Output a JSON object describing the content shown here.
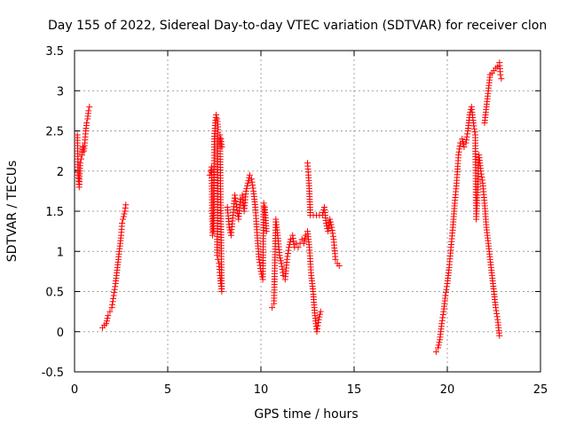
{
  "chart_data": {
    "type": "scatter",
    "title": "Day 155 of 2022, Sidereal Day-to-day VTEC variation (SDTVAR) for receiver clon",
    "xlabel": "GPS time / hours",
    "ylabel": "SDTVAR / TECUs",
    "xlim": [
      0,
      25
    ],
    "ylim": [
      -0.5,
      3.5
    ],
    "xticks": [
      0,
      5,
      10,
      15,
      20,
      25
    ],
    "xtick_labels": [
      "0",
      "5",
      "10",
      "15",
      "20",
      "25"
    ],
    "yticks": [
      -0.5,
      0,
      0.5,
      1,
      1.5,
      2,
      2.5,
      3,
      3.5
    ],
    "ytick_labels": [
      "-0.5",
      "0",
      "0.5",
      "1",
      "1.5",
      "2",
      "2.5",
      "3",
      "3.5"
    ],
    "grid": true,
    "marker": "+",
    "color": "#ff0000",
    "segments": [
      {
        "name": "arc-1",
        "points": [
          [
            0.15,
            2.45
          ],
          [
            0.2,
            1.95
          ],
          [
            0.25,
            1.8
          ],
          [
            0.3,
            2.1
          ],
          [
            0.35,
            2.15
          ],
          [
            0.4,
            2.2
          ],
          [
            0.45,
            2.3
          ],
          [
            0.5,
            2.25
          ],
          [
            0.55,
            2.35
          ],
          [
            0.6,
            2.5
          ],
          [
            0.65,
            2.6
          ],
          [
            0.7,
            2.65
          ],
          [
            0.75,
            2.75
          ],
          [
            0.8,
            2.8
          ]
        ]
      },
      {
        "name": "arc-2",
        "points": [
          [
            1.5,
            0.05
          ],
          [
            1.6,
            0.08
          ],
          [
            1.7,
            0.1
          ],
          [
            1.8,
            0.2
          ],
          [
            1.9,
            0.25
          ],
          [
            2.0,
            0.3
          ],
          [
            2.1,
            0.45
          ],
          [
            2.2,
            0.6
          ],
          [
            2.3,
            0.8
          ],
          [
            2.4,
            1.0
          ],
          [
            2.5,
            1.2
          ],
          [
            2.55,
            1.35
          ],
          [
            2.6,
            1.4
          ],
          [
            2.7,
            1.5
          ],
          [
            2.75,
            1.58
          ]
        ]
      },
      {
        "name": "arc-3",
        "points": [
          [
            7.25,
            1.95
          ],
          [
            7.3,
            2.0
          ],
          [
            7.35,
            2.05
          ],
          [
            7.4,
            1.2
          ],
          [
            7.45,
            1.25
          ],
          [
            7.5,
            2.4
          ],
          [
            7.55,
            2.6
          ],
          [
            7.6,
            2.7
          ],
          [
            7.65,
            2.65
          ],
          [
            7.7,
            2.55
          ],
          [
            7.65,
            0.95
          ],
          [
            7.7,
            0.9
          ],
          [
            7.75,
            0.85
          ],
          [
            7.8,
            0.7
          ],
          [
            7.85,
            0.6
          ],
          [
            7.9,
            0.5
          ],
          [
            7.8,
            2.45
          ],
          [
            7.85,
            2.4
          ],
          [
            7.9,
            2.3
          ]
        ]
      },
      {
        "name": "arc-4",
        "points": [
          [
            8.2,
            1.55
          ],
          [
            8.3,
            1.3
          ],
          [
            8.4,
            1.2
          ],
          [
            8.5,
            1.45
          ],
          [
            8.6,
            1.7
          ],
          [
            8.7,
            1.55
          ],
          [
            8.8,
            1.4
          ],
          [
            8.9,
            1.65
          ],
          [
            9.0,
            1.7
          ],
          [
            9.1,
            1.5
          ],
          [
            9.2,
            1.75
          ],
          [
            9.3,
            1.85
          ],
          [
            9.4,
            1.95
          ],
          [
            9.5,
            1.9
          ],
          [
            9.6,
            1.75
          ],
          [
            9.7,
            1.55
          ],
          [
            9.8,
            1.2
          ],
          [
            9.9,
            0.9
          ],
          [
            10.0,
            0.75
          ],
          [
            10.1,
            0.65
          ],
          [
            10.15,
            1.6
          ],
          [
            10.2,
            1.55
          ],
          [
            10.3,
            1.25
          ]
        ]
      },
      {
        "name": "arc-5",
        "points": [
          [
            10.6,
            0.3
          ],
          [
            10.7,
            0.35
          ],
          [
            10.8,
            1.4
          ],
          [
            10.9,
            1.2
          ],
          [
            11.0,
            0.95
          ],
          [
            11.1,
            0.85
          ],
          [
            11.2,
            0.7
          ],
          [
            11.3,
            0.65
          ],
          [
            11.4,
            0.9
          ],
          [
            11.5,
            1.05
          ],
          [
            11.6,
            1.15
          ],
          [
            11.7,
            1.2
          ],
          [
            11.8,
            1.05
          ],
          [
            11.9,
            1.1
          ],
          [
            12.0,
            1.05
          ],
          [
            12.1,
            1.1
          ],
          [
            12.2,
            1.15
          ],
          [
            12.3,
            1.1
          ],
          [
            12.4,
            1.2
          ],
          [
            12.5,
            1.25
          ],
          [
            12.6,
            1.05
          ],
          [
            12.7,
            0.7
          ],
          [
            12.8,
            0.5
          ],
          [
            12.9,
            0.2
          ],
          [
            13.0,
            0.0
          ],
          [
            13.1,
            0.15
          ],
          [
            13.2,
            0.25
          ]
        ]
      },
      {
        "name": "arc-6",
        "points": [
          [
            12.5,
            2.1
          ],
          [
            12.55,
            1.95
          ],
          [
            12.6,
            1.75
          ],
          [
            12.65,
            1.45
          ],
          [
            13.3,
            1.45
          ],
          [
            13.4,
            1.55
          ],
          [
            13.5,
            1.35
          ],
          [
            13.6,
            1.25
          ],
          [
            13.7,
            1.4
          ],
          [
            13.8,
            1.3
          ],
          [
            13.9,
            1.15
          ],
          [
            14.0,
            0.9
          ],
          [
            14.1,
            0.85
          ],
          [
            14.2,
            0.82
          ]
        ]
      },
      {
        "name": "arc-7",
        "points": [
          [
            19.4,
            -0.25
          ],
          [
            19.5,
            -0.2
          ],
          [
            19.6,
            -0.1
          ],
          [
            19.7,
            0.1
          ],
          [
            19.8,
            0.25
          ],
          [
            19.9,
            0.45
          ],
          [
            20.0,
            0.6
          ],
          [
            20.1,
            0.8
          ],
          [
            20.2,
            1.05
          ],
          [
            20.3,
            1.3
          ],
          [
            20.4,
            1.6
          ],
          [
            20.5,
            1.85
          ],
          [
            20.6,
            2.2
          ],
          [
            20.7,
            2.35
          ],
          [
            20.8,
            2.4
          ],
          [
            20.9,
            2.3
          ],
          [
            21.0,
            2.35
          ],
          [
            21.1,
            2.5
          ],
          [
            21.2,
            2.7
          ],
          [
            21.3,
            2.8
          ],
          [
            21.4,
            2.6
          ],
          [
            21.5,
            2.45
          ],
          [
            21.55,
            1.4
          ],
          [
            21.6,
            1.6
          ],
          [
            21.7,
            2.2
          ],
          [
            21.8,
            2.0
          ],
          [
            21.9,
            1.85
          ],
          [
            22.0,
            1.6
          ],
          [
            22.1,
            1.3
          ],
          [
            22.2,
            1.1
          ],
          [
            22.3,
            0.9
          ],
          [
            22.4,
            0.7
          ],
          [
            22.5,
            0.5
          ],
          [
            22.6,
            0.3
          ],
          [
            22.7,
            0.15
          ],
          [
            22.8,
            -0.05
          ]
        ]
      },
      {
        "name": "arc-8",
        "points": [
          [
            22.0,
            2.6
          ],
          [
            22.1,
            2.8
          ],
          [
            22.2,
            3.0
          ],
          [
            22.3,
            3.2
          ],
          [
            22.4,
            3.22
          ],
          [
            22.5,
            3.25
          ],
          [
            22.6,
            3.28
          ],
          [
            22.7,
            3.3
          ],
          [
            22.8,
            3.35
          ],
          [
            22.85,
            3.2
          ],
          [
            22.9,
            3.15
          ]
        ]
      }
    ]
  }
}
